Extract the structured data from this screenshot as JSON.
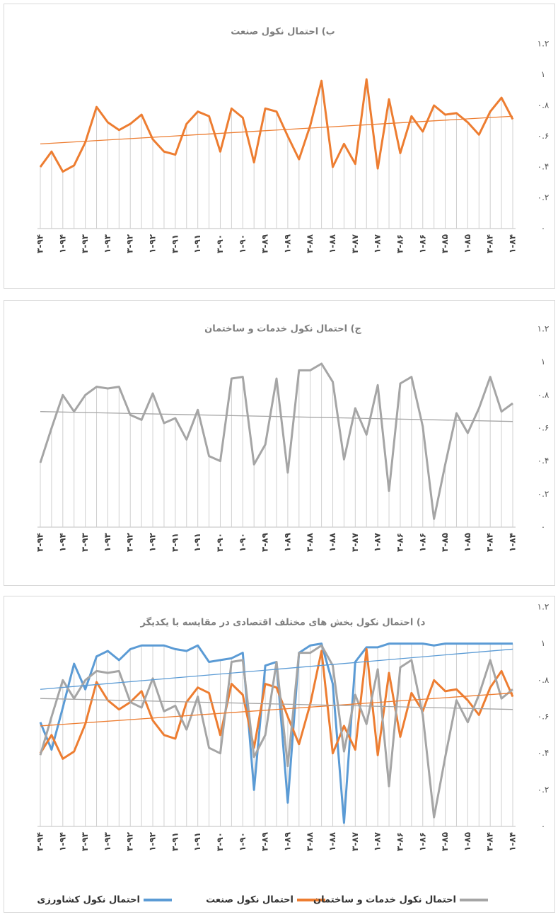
{
  "chart_data": [
    {
      "type": "line",
      "title": "ب) احتمال نکول صنعت",
      "color": "#ed7d31",
      "trend": {
        "start": 0.55,
        "end": 0.73,
        "color": "#ed7d31"
      },
      "categories": [
        "۳-۹۴",
        null,
        "۱-۹۴",
        null,
        "۳-۹۳",
        null,
        "۱-۹۳",
        null,
        "۳-۹۲",
        null,
        "۱-۹۲",
        null,
        "۳-۹۱",
        null,
        "۱-۹۱",
        null,
        "۳-۹۰",
        null,
        "۱-۹۰",
        null,
        "۳-۸۹",
        null,
        "۱-۸۹",
        null,
        "۳-۸۸",
        null,
        "۱-۸۸",
        null,
        "۳-۸۷",
        null,
        "۱-۸۷",
        null,
        "۳-۸۶",
        null,
        "۱-۸۶",
        null,
        "۳-۸۵",
        null,
        "۱-۸۵",
        null,
        "۳-۸۴",
        null,
        "۱-۸۴"
      ],
      "values": [
        0.4,
        0.5,
        0.37,
        0.41,
        0.56,
        0.79,
        0.69,
        0.64,
        0.68,
        0.74,
        0.58,
        0.5,
        0.48,
        0.68,
        0.76,
        0.73,
        0.5,
        0.78,
        0.72,
        0.43,
        0.78,
        0.76,
        0.6,
        0.45,
        0.67,
        0.96,
        0.4,
        0.55,
        0.42,
        0.97,
        0.39,
        0.84,
        0.49,
        0.73,
        0.63,
        0.8,
        0.74,
        0.75,
        0.69,
        0.61,
        0.76,
        0.85,
        0.71
      ],
      "ylim": [
        0,
        1.2
      ],
      "yticks": [
        {
          "value": 0,
          "label": "۰"
        },
        {
          "value": 0.2,
          "label": "۰.۲"
        },
        {
          "value": 0.4,
          "label": "۰.۴"
        },
        {
          "value": 0.6,
          "label": "۰.۶"
        },
        {
          "value": 0.8,
          "label": "۰.۸"
        },
        {
          "value": 1,
          "label": "۱"
        },
        {
          "value": 1.2,
          "label": "۱.۲"
        }
      ]
    },
    {
      "type": "line",
      "title": "ج) احتمال نکول خدمات و ساختمان",
      "color": "#a5a5a5",
      "trend": {
        "start": 0.7,
        "end": 0.64,
        "color": "#a5a5a5"
      },
      "categories": [
        "۳-۹۴",
        null,
        "۱-۹۴",
        null,
        "۳-۹۳",
        null,
        "۱-۹۳",
        null,
        "۳-۹۲",
        null,
        "۱-۹۲",
        null,
        "۳-۹۱",
        null,
        "۱-۹۱",
        null,
        "۳-۹۰",
        null,
        "۱-۹۰",
        null,
        "۳-۸۹",
        null,
        "۱-۸۹",
        null,
        "۳-۸۸",
        null,
        "۱-۸۸",
        null,
        "۳-۸۷",
        null,
        "۱-۸۷",
        null,
        "۳-۸۶",
        null,
        "۱-۸۶",
        null,
        "۳-۸۵",
        null,
        "۱-۸۵",
        null,
        "۳-۸۴",
        null,
        "۱-۸۴"
      ],
      "values": [
        0.39,
        0.6,
        0.8,
        0.7,
        0.8,
        0.85,
        0.84,
        0.85,
        0.68,
        0.65,
        0.81,
        0.63,
        0.66,
        0.53,
        0.71,
        0.43,
        0.4,
        0.9,
        0.91,
        0.38,
        0.5,
        0.9,
        0.33,
        0.95,
        0.95,
        0.99,
        0.88,
        0.41,
        0.72,
        0.56,
        0.86,
        0.22,
        0.87,
        0.91,
        0.61,
        0.05,
        0.38,
        0.69,
        0.57,
        0.72,
        0.91,
        0.7,
        0.75
      ],
      "ylim": [
        0,
        1.2
      ],
      "yticks": [
        {
          "value": 0,
          "label": "۰"
        },
        {
          "value": 0.2,
          "label": "۰.۲"
        },
        {
          "value": 0.4,
          "label": "۰.۴"
        },
        {
          "value": 0.6,
          "label": "۰.۶"
        },
        {
          "value": 0.8,
          "label": "۰.۸"
        },
        {
          "value": 1,
          "label": "۱"
        },
        {
          "value": 1.2,
          "label": "۱.۲"
        }
      ]
    },
    {
      "type": "line",
      "title": "د) احتمال نکول بخش های مختلف اقتصادی در مقایسه با یکدیگر",
      "categories": [
        "۳-۹۴",
        null,
        "۱-۹۴",
        null,
        "۳-۹۳",
        null,
        "۱-۹۳",
        null,
        "۳-۹۲",
        null,
        "۱-۹۲",
        null,
        "۳-۹۱",
        null,
        "۱-۹۱",
        null,
        "۳-۹۰",
        null,
        "۱-۹۰",
        null,
        "۳-۸۹",
        null,
        "۱-۸۹",
        null,
        "۳-۸۸",
        null,
        "۱-۸۸",
        null,
        "۳-۸۷",
        null,
        "۱-۸۷",
        null,
        "۳-۸۶",
        null,
        "۱-۸۶",
        null,
        "۳-۸۵",
        null,
        "۱-۸۵",
        null,
        "۳-۸۴",
        null,
        "۱-۸۴"
      ],
      "series": [
        {
          "name": "احتمال نکول کشاورزی",
          "color": "#5b9bd5",
          "trend": {
            "start": 0.75,
            "end": 0.97
          },
          "values": [
            0.57,
            0.42,
            0.65,
            0.89,
            0.75,
            0.93,
            0.96,
            0.91,
            0.97,
            0.99,
            0.99,
            0.99,
            0.97,
            0.96,
            0.99,
            0.9,
            0.91,
            0.92,
            0.95,
            0.2,
            0.88,
            0.9,
            0.13,
            0.95,
            0.99,
            1.0,
            0.78,
            0.02,
            0.9,
            0.98,
            0.98,
            1.0,
            1.0,
            1.0,
            1.0,
            0.99,
            1.0,
            1.0,
            1.0,
            1.0,
            1.0,
            1.0,
            1.0
          ]
        },
        {
          "name": "احتمال نکول صنعت",
          "color": "#ed7d31",
          "trend": {
            "start": 0.55,
            "end": 0.73
          },
          "values": [
            0.4,
            0.5,
            0.37,
            0.41,
            0.56,
            0.79,
            0.69,
            0.64,
            0.68,
            0.74,
            0.58,
            0.5,
            0.48,
            0.68,
            0.76,
            0.73,
            0.5,
            0.78,
            0.72,
            0.43,
            0.78,
            0.76,
            0.6,
            0.45,
            0.67,
            0.96,
            0.4,
            0.55,
            0.42,
            0.97,
            0.39,
            0.84,
            0.49,
            0.73,
            0.63,
            0.8,
            0.74,
            0.75,
            0.69,
            0.61,
            0.76,
            0.85,
            0.71
          ]
        },
        {
          "name": "احتمال نکول خدمات و ساختمان",
          "color": "#a5a5a5",
          "trend": {
            "start": 0.7,
            "end": 0.64
          },
          "values": [
            0.39,
            0.6,
            0.8,
            0.7,
            0.8,
            0.85,
            0.84,
            0.85,
            0.68,
            0.65,
            0.81,
            0.63,
            0.66,
            0.53,
            0.71,
            0.43,
            0.4,
            0.9,
            0.91,
            0.38,
            0.5,
            0.9,
            0.33,
            0.95,
            0.95,
            0.99,
            0.88,
            0.41,
            0.72,
            0.56,
            0.86,
            0.22,
            0.87,
            0.91,
            0.61,
            0.05,
            0.38,
            0.69,
            0.57,
            0.72,
            0.91,
            0.7,
            0.75
          ]
        }
      ],
      "ylim": [
        0,
        1.2
      ],
      "yticks": [
        {
          "value": 0,
          "label": "۰"
        },
        {
          "value": 0.2,
          "label": "۰.۲"
        },
        {
          "value": 0.4,
          "label": "۰.۴"
        },
        {
          "value": 0.6,
          "label": "۰.۶"
        },
        {
          "value": 0.8,
          "label": "۰.۸"
        },
        {
          "value": 1,
          "label": "۱"
        },
        {
          "value": 1.2,
          "label": "۱.۲"
        }
      ]
    }
  ]
}
